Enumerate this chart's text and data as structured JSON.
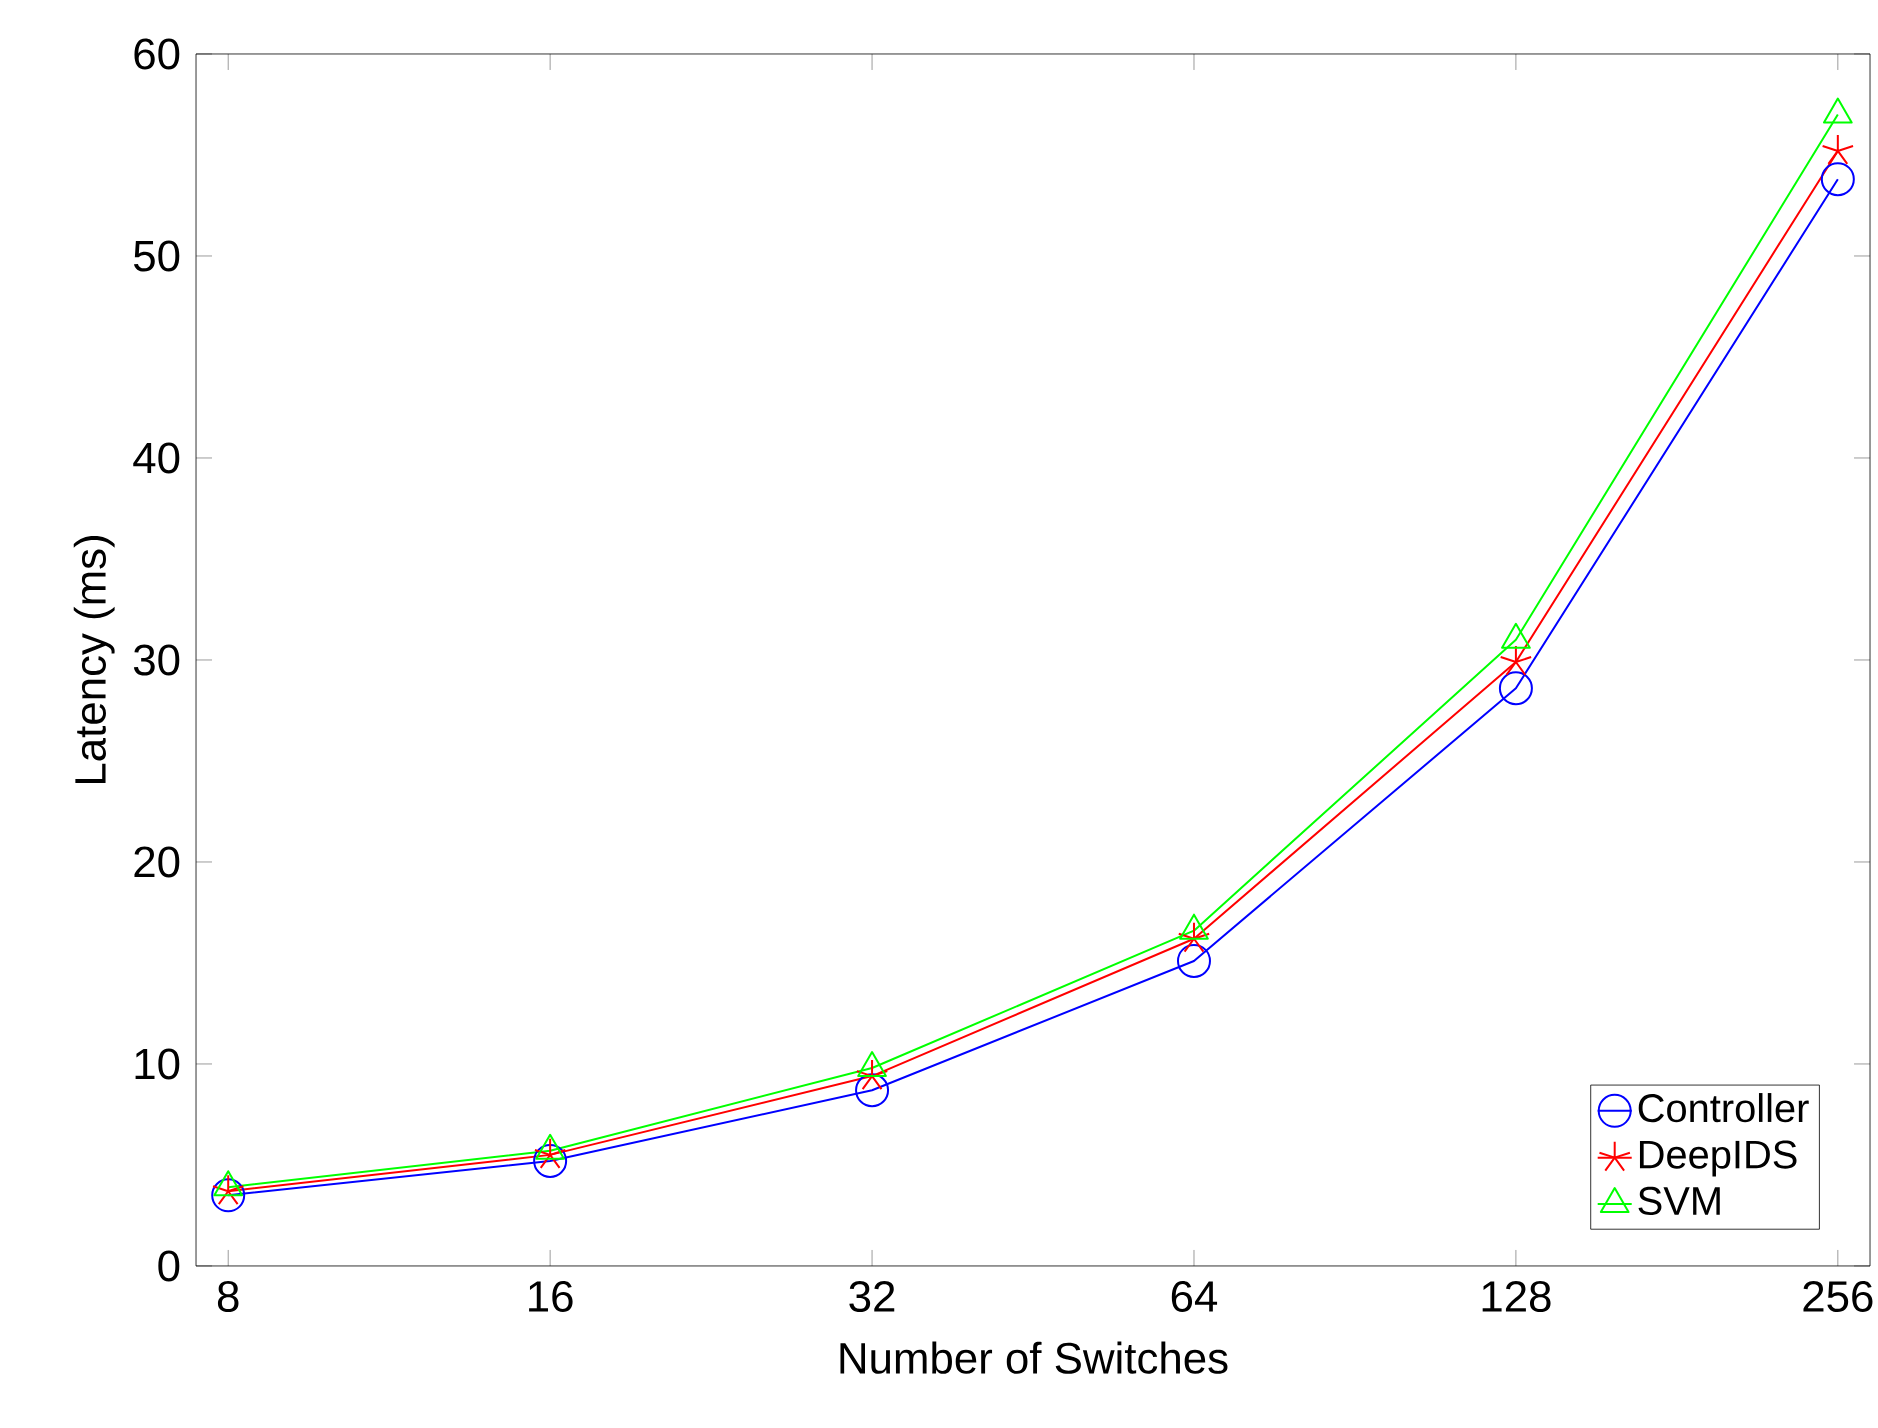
{
  "chart_data": {
    "type": "line",
    "xlabel": "Number of Switches",
    "ylabel": "Latency (ms)",
    "categories": [
      "8",
      "16",
      "32",
      "64",
      "128",
      "256"
    ],
    "series": [
      {
        "name": "Controller",
        "color": "#0000ff",
        "marker": "circle",
        "values": [
          3.5,
          5.2,
          8.7,
          15.1,
          28.6,
          53.8
        ]
      },
      {
        "name": "DeepIDS",
        "color": "#ff0000",
        "marker": "cross",
        "values": [
          3.7,
          5.5,
          9.4,
          16.2,
          29.9,
          55.2
        ]
      },
      {
        "name": "SVM",
        "color": "#00ff00",
        "marker": "triangle",
        "values": [
          3.9,
          5.7,
          9.8,
          16.6,
          31.0,
          57.0
        ]
      }
    ],
    "ylim": [
      0,
      60
    ],
    "yticks": [
      0,
      10,
      20,
      30,
      40,
      50,
      60
    ],
    "grid": false,
    "legend": "bottom right",
    "line_style": "solid"
  }
}
